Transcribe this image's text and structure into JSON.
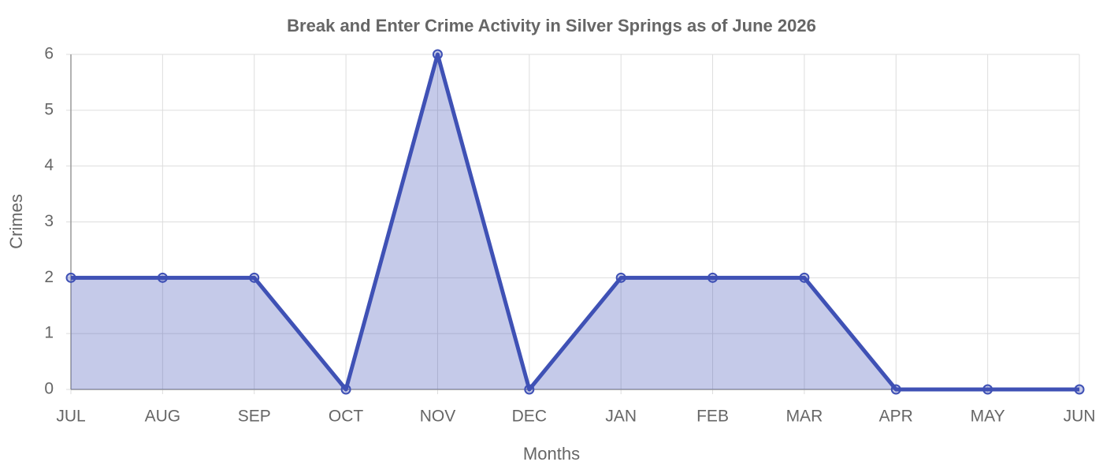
{
  "chart_data": {
    "type": "line",
    "title": "Break and Enter Crime Activity in Silver Springs as of June 2026",
    "xlabel": "Months",
    "ylabel": "Crimes",
    "categories": [
      "JUL",
      "AUG",
      "SEP",
      "OCT",
      "NOV",
      "DEC",
      "JAN",
      "FEB",
      "MAR",
      "APR",
      "MAY",
      "JUN"
    ],
    "series": [
      {
        "name": "Crimes",
        "color": "#3f51b5",
        "values": [
          2,
          2,
          2,
          0,
          6,
          0,
          2,
          2,
          2,
          0,
          0,
          0
        ]
      }
    ],
    "fill": true,
    "ylim": [
      0,
      6
    ],
    "yticks": [
      0,
      1,
      2,
      3,
      4,
      5,
      6
    ],
    "grid": true
  }
}
